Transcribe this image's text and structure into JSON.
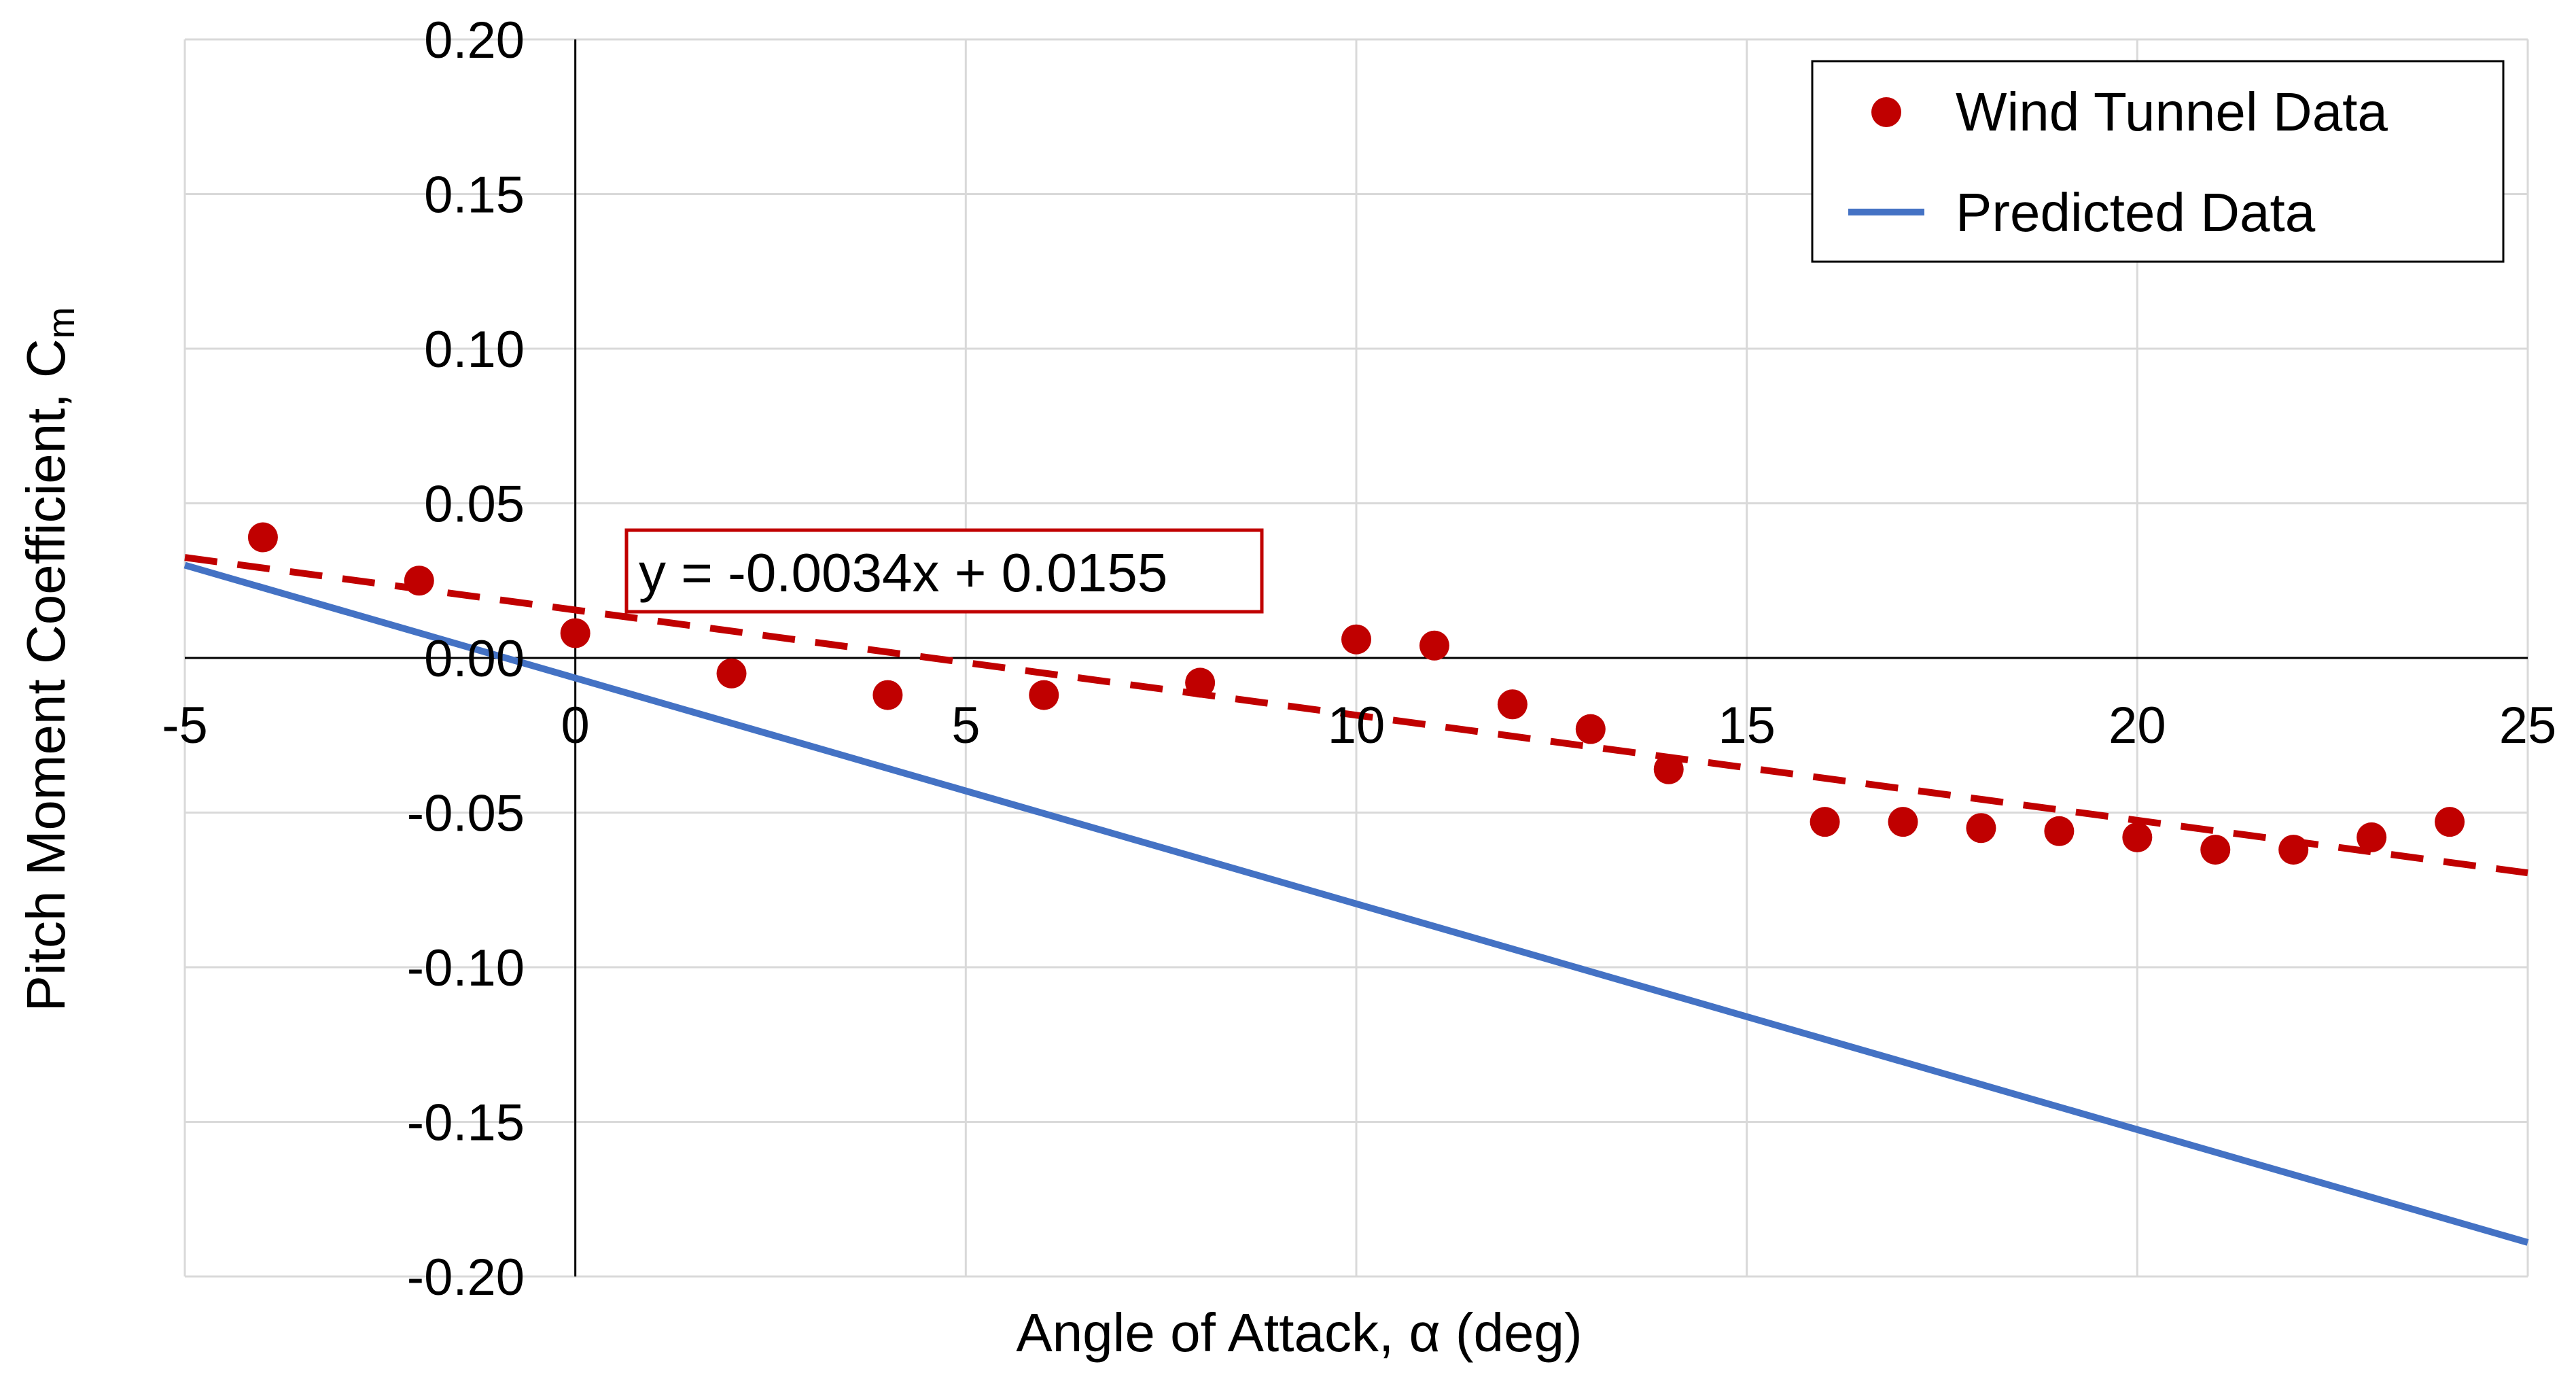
{
  "chart_data": {
    "type": "scatter",
    "title": "",
    "xlabel": "Angle of Attack, α  (deg)",
    "ylabel": "Pitch Moment Coefficient, C",
    "ylabel_subscript": "m",
    "xlim": [
      -5,
      25
    ],
    "ylim": [
      -0.2,
      0.2
    ],
    "xticks": [
      "-5",
      "0",
      "5",
      "10",
      "15",
      "20",
      "25"
    ],
    "yticks": [
      "0.20",
      "0.15",
      "0.10",
      "0.05",
      "0.00",
      "-0.05",
      "-0.10",
      "-0.15",
      "-0.20"
    ],
    "grid": true,
    "legend": "top-right",
    "series": [
      {
        "name": "Wind Tunnel Data",
        "kind": "markers",
        "color": "#C00000",
        "x": [
          -4,
          -2,
          0,
          2,
          4,
          6,
          8,
          10,
          11,
          12,
          13,
          14,
          16,
          17,
          18,
          19,
          20,
          21,
          22,
          23,
          24
        ],
        "y": [
          0.039,
          0.025,
          0.008,
          -0.005,
          -0.012,
          -0.012,
          -0.008,
          0.006,
          0.004,
          -0.015,
          -0.023,
          -0.036,
          -0.053,
          -0.053,
          -0.055,
          -0.056,
          -0.058,
          -0.062,
          -0.062,
          -0.058,
          -0.053
        ]
      },
      {
        "name": "Predicted Data",
        "kind": "line",
        "color": "#4472C4",
        "x": [
          -5,
          25
        ],
        "y": [
          0.03,
          -0.189
        ]
      }
    ],
    "trendline": {
      "color": "#C00000",
      "style": "dashed",
      "x": [
        -5,
        25
      ],
      "y": [
        0.0325,
        -0.0695
      ],
      "equation": "y = -0.0034x + 0.0155"
    }
  }
}
